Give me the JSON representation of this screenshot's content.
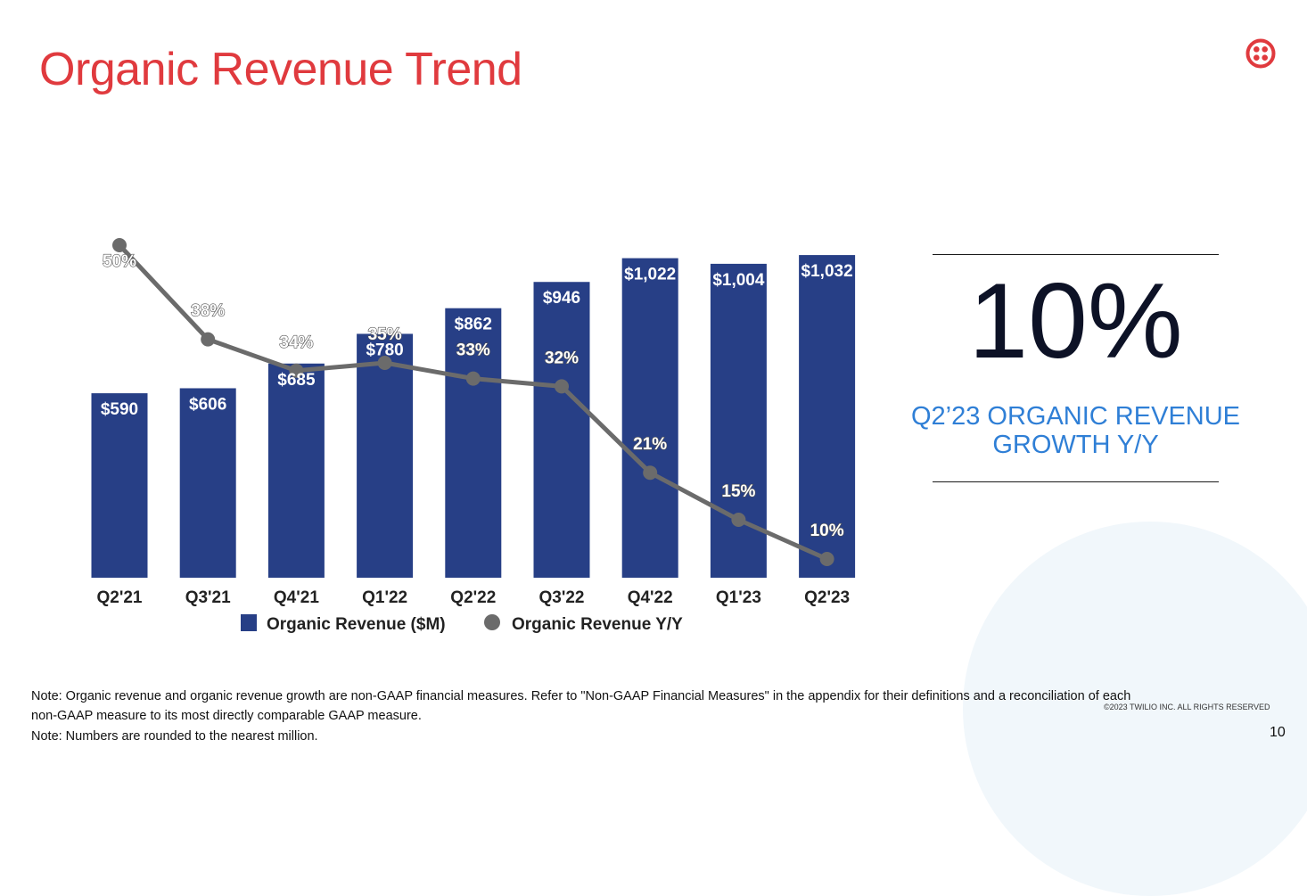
{
  "slide": {
    "title": "Organic Revenue Trend",
    "logo": "twilio-logo-icon",
    "brand_color": "#e03a3e",
    "page_number": "10",
    "copyright": "©2023 TWILIO INC. ALL RIGHTS RESERVED"
  },
  "kpi": {
    "value": "10%",
    "label": "Q2’23 ORGANIC REVENUE GROWTH Y/Y",
    "label_color": "#2f7fd6"
  },
  "notes": [
    "Note: Organic revenue and organic revenue growth are non-GAAP financial measures. Refer to \"Non-GAAP Financial Measures\" in the appendix for their definitions and a reconciliation of each",
    "non-GAAP measure to its most directly comparable GAAP measure.",
    "Note: Numbers are rounded to the nearest million."
  ],
  "chart_data": {
    "type": "bar",
    "title": "",
    "xlabel": "",
    "ylabel": "",
    "categories": [
      "Q2'21",
      "Q3'21",
      "Q4'21",
      "Q1'22",
      "Q2'22",
      "Q3'22",
      "Q4'22",
      "Q1'23",
      "Q2'23"
    ],
    "series": [
      {
        "name": "Organic Revenue ($M)",
        "type": "bar",
        "color": "#273f86",
        "values": [
          590,
          606,
          685,
          780,
          862,
          946,
          1022,
          1004,
          1032
        ],
        "labels": [
          "$590",
          "$606",
          "$685",
          "$780",
          "$862",
          "$946",
          "$1,022",
          "$1,004",
          "$1,032"
        ]
      },
      {
        "name": "Organic Revenue Y/Y",
        "type": "line",
        "color": "#6b6b6b",
        "values": [
          50,
          38,
          34,
          35,
          33,
          32,
          21,
          15,
          10
        ],
        "labels": [
          "50%",
          "38%",
          "34%",
          "35%",
          "33%",
          "32%",
          "21%",
          "15%",
          "10%"
        ]
      }
    ],
    "legend": "bottom",
    "grid": false
  }
}
